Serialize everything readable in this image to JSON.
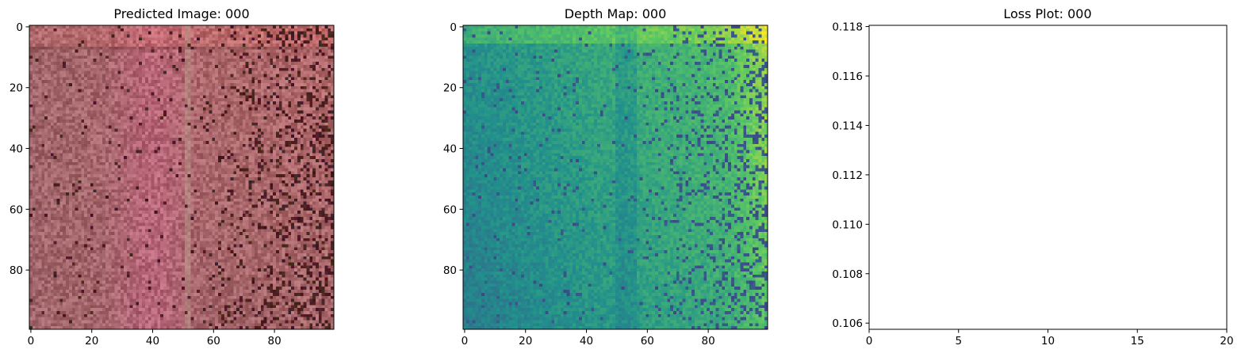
{
  "chart_data": [
    {
      "type": "heatmap",
      "title": "Predicted Image: 000",
      "colormap": "rgb",
      "grid": false,
      "xlim": [
        -0.5,
        99.5
      ],
      "ylim": [
        99.5,
        -0.5
      ],
      "xticks": [
        0,
        20,
        40,
        60,
        80
      ],
      "yticks": [
        0,
        20,
        40,
        60,
        80
      ],
      "palette": {
        "base": "#a0656a",
        "pink_band": "#c06482",
        "bright_edge": "#d9706c",
        "dark_speckle": "#4a1f22",
        "vertical_line": "#b8a08c"
      }
    },
    {
      "type": "heatmap",
      "title": "Depth Map: 000",
      "colormap": "viridis",
      "grid": false,
      "xlim": [
        -0.5,
        99.5
      ],
      "ylim": [
        99.5,
        -0.5
      ],
      "xticks": [
        0,
        20,
        40,
        60,
        80
      ],
      "yticks": [
        0,
        20,
        40,
        60,
        80
      ]
    },
    {
      "type": "line",
      "title": "Loss Plot: 000",
      "series": [
        {
          "x": [],
          "y": []
        }
      ],
      "grid": false,
      "xlim": [
        0,
        20
      ],
      "ylim": [
        0.10575,
        0.11805
      ],
      "xticks": [
        0,
        5,
        10,
        15,
        20
      ],
      "yticks": [
        0.106,
        0.108,
        0.11,
        0.112,
        0.114,
        0.116,
        0.118
      ],
      "ytick_labels": [
        "0.106",
        "0.108",
        "0.110",
        "0.112",
        "0.114",
        "0.116",
        "0.118"
      ]
    }
  ]
}
